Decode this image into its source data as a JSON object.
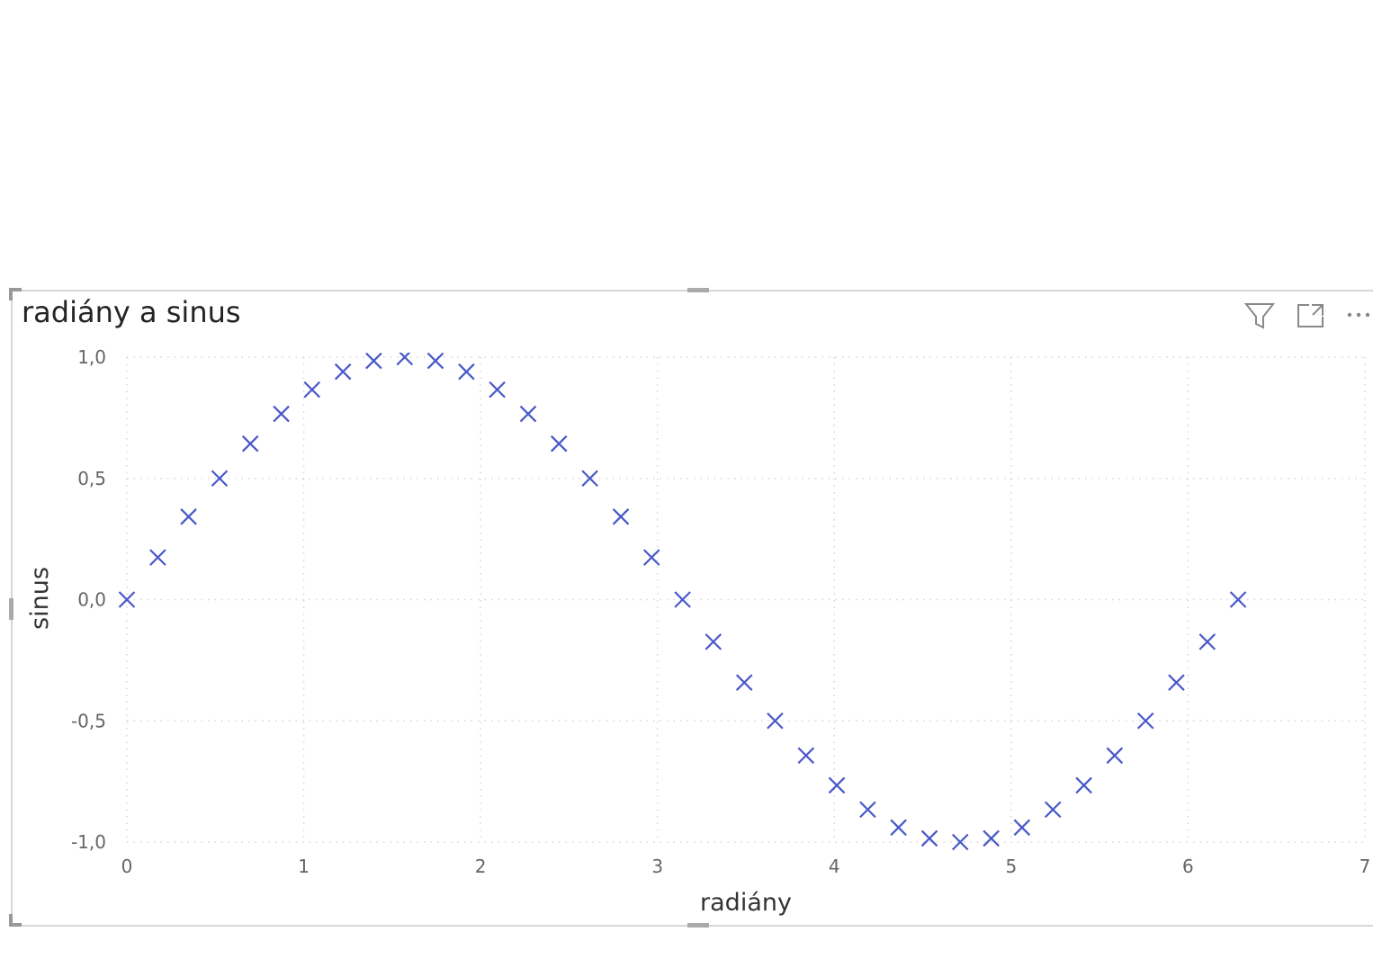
{
  "visual": {
    "title": "radiány a sinus",
    "icons": [
      "filter-icon",
      "focus-mode-icon",
      "more-options-icon"
    ]
  },
  "colors": {
    "marker": "#4858C8",
    "grid": "#D6D6D6",
    "border": "#C8C8C8",
    "tick_text": "#666666",
    "axis_title": "#333333"
  },
  "chart_data": {
    "type": "scatter",
    "title": "radiány a sinus",
    "xlabel": "radiány",
    "ylabel": "sinus",
    "xlim": [
      0,
      7
    ],
    "ylim": [
      -1,
      1
    ],
    "x_ticks": [
      "0",
      "1",
      "2",
      "3",
      "4",
      "5",
      "6",
      "7"
    ],
    "y_ticks": [
      "1,0",
      "0,5",
      "0,0",
      "-0,5",
      "-1,0"
    ],
    "x_tick_values": [
      0,
      1,
      2,
      3,
      4,
      5,
      6,
      7
    ],
    "y_tick_values": [
      1,
      0.5,
      0,
      -0.5,
      -1
    ],
    "grid": true,
    "marker": "x",
    "series": [
      {
        "x": [
          0,
          0.175,
          0.349,
          0.524,
          0.698,
          0.873,
          1.047,
          1.222,
          1.396,
          1.571,
          1.745,
          1.92,
          2.094,
          2.269,
          2.443,
          2.618,
          2.793,
          2.967,
          3.142,
          3.316,
          3.491,
          3.665,
          3.84,
          4.014,
          4.189,
          4.363,
          4.538,
          4.712,
          4.887,
          5.061,
          5.236,
          5.411,
          5.585,
          5.76,
          5.934,
          6.109,
          6.283
        ],
        "y": [
          0,
          0.174,
          0.342,
          0.5,
          0.643,
          0.766,
          0.866,
          0.94,
          0.985,
          1,
          0.985,
          0.94,
          0.866,
          0.766,
          0.643,
          0.5,
          0.342,
          0.174,
          0,
          -0.174,
          -0.342,
          -0.5,
          -0.643,
          -0.766,
          -0.866,
          -0.94,
          -0.985,
          -1,
          -0.985,
          -0.94,
          -0.866,
          -0.766,
          -0.643,
          -0.5,
          -0.342,
          -0.174,
          0
        ]
      }
    ]
  }
}
